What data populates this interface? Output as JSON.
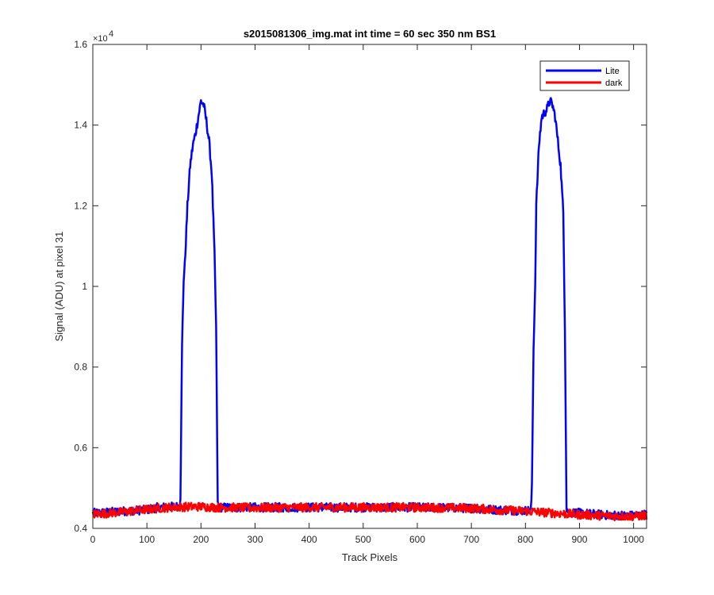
{
  "chart_data": {
    "type": "line",
    "title": "s2015081306_img.mat int time = 60 sec  350 nm BS1",
    "xlabel": "Track Pixels",
    "ylabel": "Signal (ADU) at pixel 31",
    "y_multiplier_label": "×10",
    "y_multiplier_exponent": "4",
    "xlim": [
      0,
      1024
    ],
    "ylim": [
      0.4,
      1.6
    ],
    "x_ticks": [
      0,
      100,
      200,
      300,
      400,
      500,
      600,
      700,
      800,
      900,
      1000
    ],
    "y_ticks": [
      0.4,
      0.6,
      0.8,
      1.0,
      1.2,
      1.4,
      1.6
    ],
    "y_tick_labels": [
      "0.4",
      "0.6",
      "0.8",
      "1",
      "1.2",
      "1.4",
      "1.6"
    ],
    "legend_position": "top-right",
    "series": [
      {
        "name": "Lite",
        "color": "#0000ff",
        "x": [
          0,
          50,
          100,
          120,
          150,
          160,
          162,
          165,
          168,
          170,
          175,
          180,
          185,
          190,
          195,
          200,
          205,
          210,
          215,
          220,
          225,
          228,
          231,
          235,
          300,
          400,
          500,
          600,
          700,
          760,
          800,
          810,
          812,
          815,
          818,
          820,
          825,
          830,
          835,
          840,
          845,
          850,
          855,
          860,
          865,
          870,
          873,
          876,
          880,
          900,
          950,
          1000,
          1024
        ],
        "values": [
          0.438,
          0.442,
          0.446,
          0.452,
          0.454,
          0.455,
          0.48,
          0.85,
          1.02,
          1.05,
          1.2,
          1.3,
          1.35,
          1.38,
          1.42,
          1.46,
          1.45,
          1.41,
          1.36,
          1.28,
          1.08,
          0.9,
          0.46,
          0.452,
          0.452,
          0.452,
          0.452,
          0.452,
          0.45,
          0.445,
          0.444,
          0.445,
          0.5,
          0.85,
          1.0,
          1.2,
          1.35,
          1.42,
          1.43,
          1.44,
          1.46,
          1.45,
          1.42,
          1.36,
          1.3,
          1.18,
          0.9,
          0.45,
          0.44,
          0.438,
          0.433,
          0.432,
          0.435
        ]
      },
      {
        "name": "dark",
        "color": "#ff0000",
        "x": [
          0,
          50,
          100,
          130,
          160,
          200,
          230,
          300,
          400,
          500,
          600,
          700,
          760,
          800,
          850,
          900,
          950,
          1000,
          1024
        ],
        "values": [
          0.435,
          0.44,
          0.447,
          0.451,
          0.453,
          0.454,
          0.452,
          0.451,
          0.452,
          0.452,
          0.452,
          0.45,
          0.445,
          0.443,
          0.438,
          0.434,
          0.431,
          0.43,
          0.432
        ]
      }
    ]
  }
}
